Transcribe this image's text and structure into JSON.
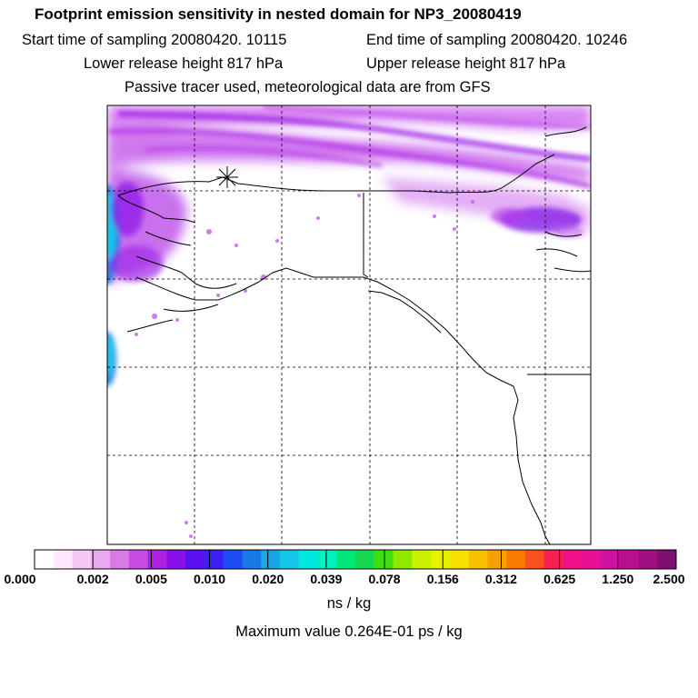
{
  "header": {
    "title": "Footprint emission sensitivity in nested domain for NP3_20080419",
    "start_time": "Start time of sampling 20080420. 10115",
    "end_time": "End time of sampling 20080420. 10246",
    "lower_release": "Lower release height  817 hPa",
    "upper_release": "Upper release height  817 hPa",
    "tracer_info": "Passive tracer used, meteorological data are from GFS"
  },
  "colorbar": {
    "colors": [
      "#ffffff",
      "#ffe8ff",
      "#f5c8f5",
      "#eaa8ee",
      "#d97ae8",
      "#c94ae5",
      "#b020e0",
      "#8a10e8",
      "#5a10f0",
      "#3a20f5",
      "#1b4cf0",
      "#1a78e6",
      "#18a6e6",
      "#16c6e8",
      "#00e8e0",
      "#00f0c0",
      "#00e87a",
      "#18d850",
      "#40e010",
      "#90e800",
      "#c8f000",
      "#e8f000",
      "#f8e000",
      "#f8c000",
      "#f8a000",
      "#f87a00",
      "#f85020",
      "#f82050",
      "#f0108a",
      "#e81096",
      "#d010a0",
      "#b81090",
      "#a01080",
      "#801070"
    ],
    "tick_labels": [
      "0.000",
      "0.002",
      "0.005",
      "0.010",
      "0.020",
      "0.039",
      "0.078",
      "0.156",
      "0.312",
      "0.625",
      "1.250",
      "2.500"
    ],
    "units": "ns / kg"
  },
  "footer": {
    "max_value": "Maximum value  0.264E-01 ps / kg"
  },
  "map": {
    "release_marker": "receptor-star",
    "grid": true
  }
}
